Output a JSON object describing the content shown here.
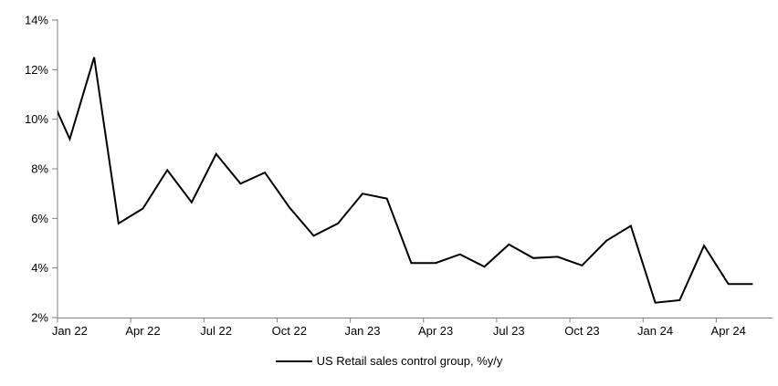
{
  "chart_data": {
    "type": "line",
    "title": "",
    "legend": "US Retail sales control group, %y/y",
    "legend_position": "bottom-center",
    "grid": false,
    "line_color": "#000000",
    "axis_color": "#808080",
    "text_color": "#000000",
    "ylim": [
      2,
      14
    ],
    "ylabel": "",
    "xlabel": "",
    "yticks": [
      {
        "value": 2,
        "label": "2%"
      },
      {
        "value": 4,
        "label": "4%"
      },
      {
        "value": 6,
        "label": "6%"
      },
      {
        "value": 8,
        "label": "8%"
      },
      {
        "value": 10,
        "label": "10%"
      },
      {
        "value": 12,
        "label": "12%"
      },
      {
        "value": 14,
        "label": "14%"
      }
    ],
    "xtick_labels": [
      "Jan 22",
      "Apr 22",
      "Jul 22",
      "Oct 22",
      "Jan 23",
      "Apr 23",
      "Jul 23",
      "Oct 23",
      "Jan 24",
      "Apr 24"
    ],
    "xtick_month_index": [
      1,
      4,
      7,
      10,
      13,
      16,
      19,
      22,
      25,
      28
    ],
    "note": "First point (Dec 21) is clipped by the y-axis; visible line starts at the axis near 10.3%",
    "x": [
      "Dec 21",
      "Jan 22",
      "Feb 22",
      "Mar 22",
      "Apr 22",
      "May 22",
      "Jun 22",
      "Jul 22",
      "Aug 22",
      "Sep 22",
      "Oct 22",
      "Nov 22",
      "Dec 22",
      "Jan 23",
      "Feb 23",
      "Mar 23",
      "Apr 23",
      "May 23",
      "Jun 23",
      "Jul 23",
      "Aug 23",
      "Sep 23",
      "Oct 23",
      "Nov 23",
      "Dec 23",
      "Jan 24",
      "Feb 24",
      "Mar 24",
      "Apr 24",
      "May 24"
    ],
    "series": [
      {
        "name": "US Retail sales control group, %y/y",
        "values": [
          11.4,
          9.2,
          12.5,
          5.8,
          6.4,
          7.95,
          6.65,
          8.6,
          7.4,
          7.85,
          6.45,
          5.3,
          5.8,
          7.0,
          6.8,
          4.2,
          4.2,
          4.55,
          4.05,
          4.95,
          4.4,
          4.45,
          4.1,
          5.1,
          5.7,
          2.6,
          2.7,
          4.9,
          3.35,
          3.35
        ]
      }
    ]
  }
}
